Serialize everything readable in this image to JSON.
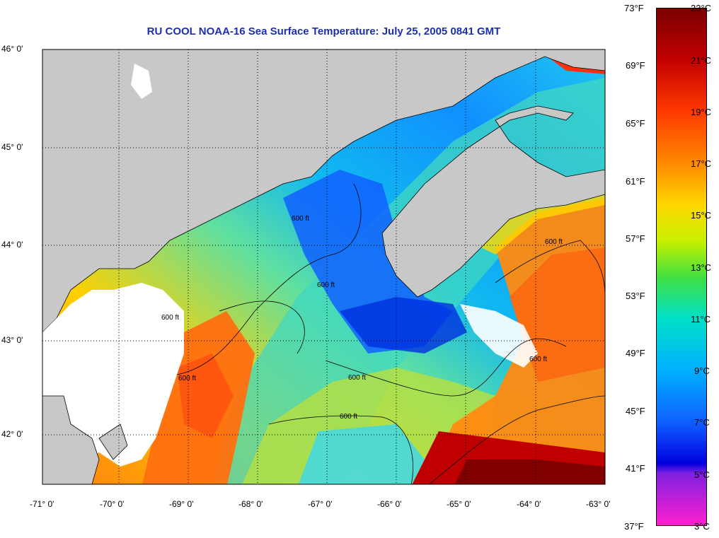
{
  "title": "RU COOL  NOAA-16  Sea Surface Temperature:  July 25, 2005 0841 GMT",
  "lat_labels": [
    "46° 0'",
    "45° 0'",
    "44° 0'",
    "43° 0'",
    "42° 0'"
  ],
  "lon_labels": [
    "-71° 0'",
    "-70° 0'",
    "-69° 0'",
    "-68° 0'",
    "-67° 0'",
    "-66° 0'",
    "-65° 0'",
    "-64° 0'",
    "-63° 0'"
  ],
  "colorbar": {
    "fahrenheit": [
      "73°F",
      "69°F",
      "65°F",
      "61°F",
      "57°F",
      "53°F",
      "49°F",
      "45°F",
      "41°F",
      "37°F"
    ],
    "celsius": [
      "23°C",
      "21°C",
      "19°C",
      "17°C",
      "15°C",
      "13°C",
      "11°C",
      "9°C",
      "7°C",
      "5°C",
      "3°C"
    ]
  },
  "contour_label": "600 ft",
  "colors": {
    "title": "#1b2fb0",
    "land": "#c8c8c8",
    "cloud": "#ffffff",
    "scale_top": "#8b0000",
    "scale_bottom": "#ff1fd0"
  }
}
